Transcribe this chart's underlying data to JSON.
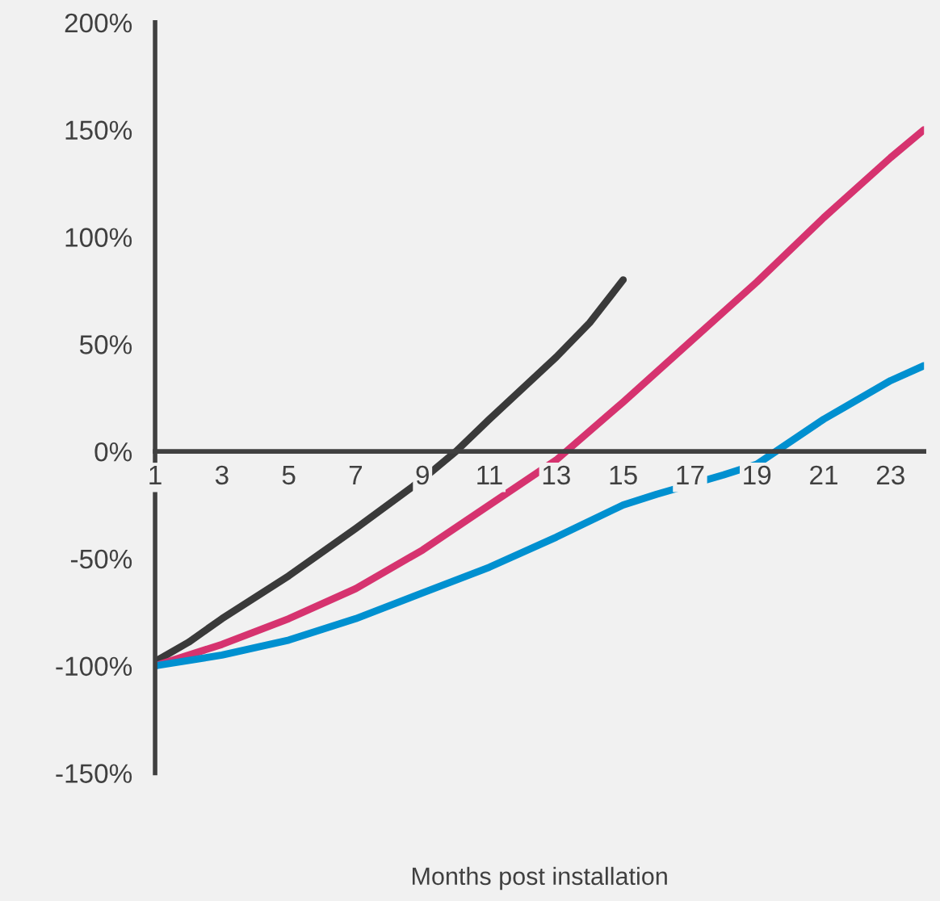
{
  "chart_data": {
    "type": "line",
    "xlabel": "Months post installation",
    "xlim": [
      1,
      24
    ],
    "xticks": [
      1,
      3,
      5,
      7,
      9,
      11,
      13,
      15,
      17,
      19,
      21,
      23
    ],
    "ylim": [
      -150,
      200
    ],
    "yticks": [
      {
        "value": -150,
        "label": "-150%"
      },
      {
        "value": -100,
        "label": "-100%"
      },
      {
        "value": -50,
        "label": "-50%"
      },
      {
        "value": 0,
        "label": "0%"
      },
      {
        "value": 50,
        "label": "50%"
      },
      {
        "value": 100,
        "label": "100%"
      },
      {
        "value": 150,
        "label": "150%"
      },
      {
        "value": 200,
        "label": "200%"
      }
    ],
    "grid": false,
    "marker": "none",
    "line_style": "solid",
    "series": [
      {
        "color": "#3a3a3a",
        "x": [
          1,
          2,
          3,
          5,
          7,
          9,
          10,
          11,
          13,
          14,
          15
        ],
        "values": [
          -98,
          -89,
          -78,
          -58,
          -36,
          -13,
          0,
          15,
          44,
          60,
          80
        ]
      },
      {
        "color": "#d6336f",
        "x": [
          1,
          3,
          5,
          7,
          9,
          11,
          13,
          15,
          17,
          19,
          21,
          23,
          24
        ],
        "values": [
          -100,
          -90,
          -78,
          -64,
          -46,
          -25,
          -4,
          23,
          51,
          79,
          109,
          137,
          150
        ]
      },
      {
        "color": "#0090d0",
        "x": [
          1,
          3,
          5,
          7,
          9,
          11,
          13,
          15,
          16,
          18,
          19,
          21,
          23,
          24
        ],
        "values": [
          -100,
          -95,
          -88,
          -78,
          -66,
          -54,
          -40,
          -25,
          -20,
          -11,
          -6,
          15,
          33,
          40
        ]
      }
    ]
  }
}
